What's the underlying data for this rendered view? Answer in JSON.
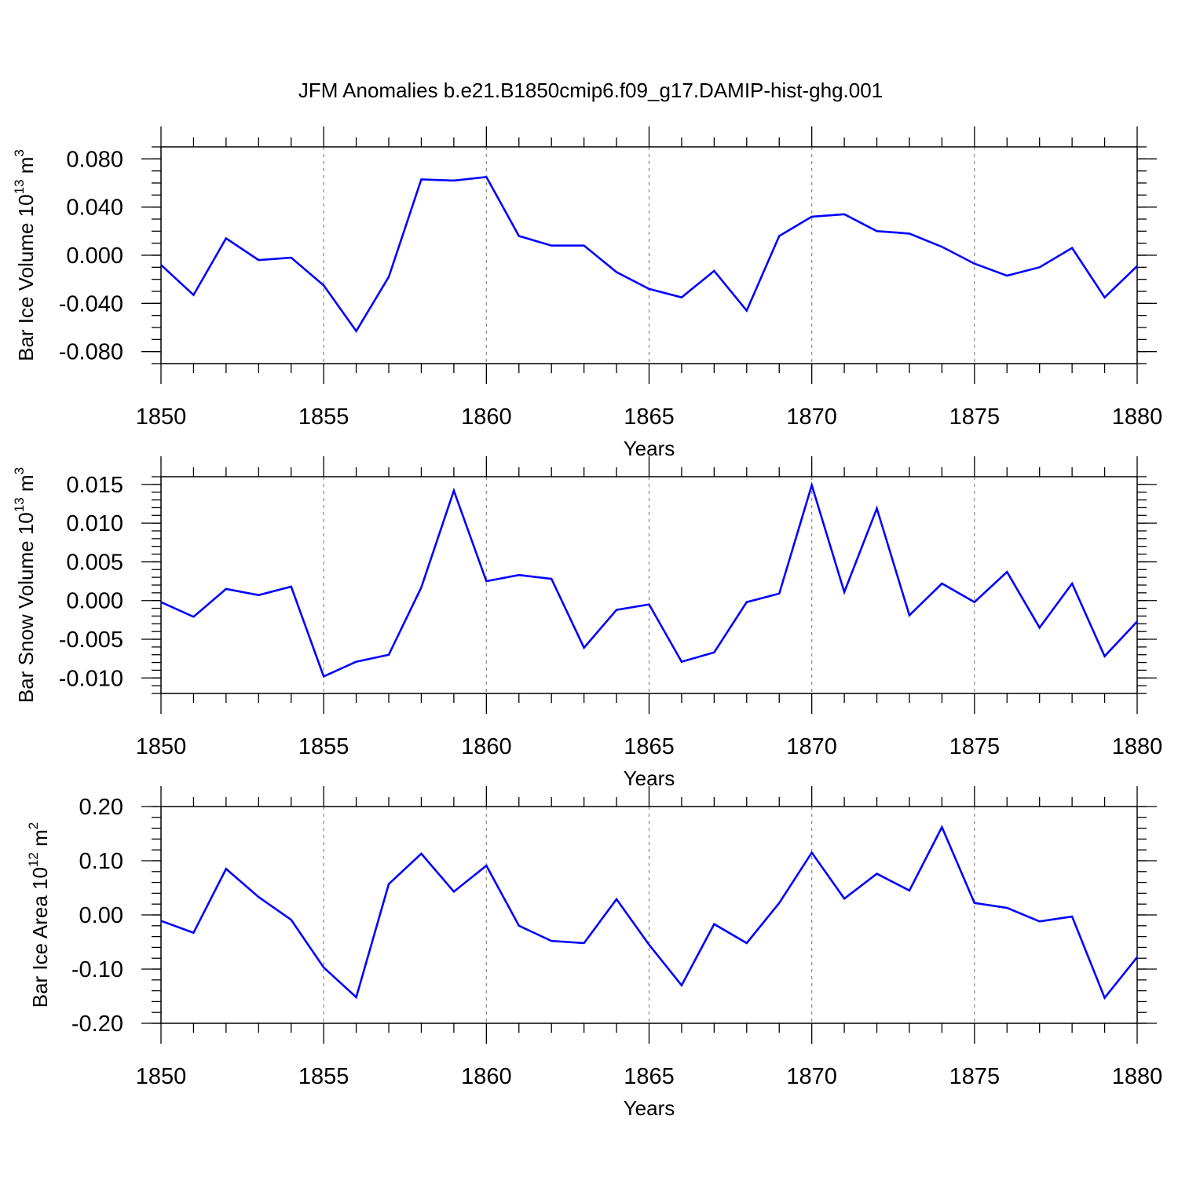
{
  "figure": {
    "title": "JFM Anomalies b.e21.B1850cmip6.f09_g17.DAMIP-hist-ghg.001",
    "line_color": "#0000ff"
  },
  "chart_data": [
    {
      "type": "line",
      "title": "JFM Anomalies b.e21.B1850cmip6.f09_g17.DAMIP-hist-ghg.001",
      "xlabel": "Years",
      "ylabel": "Bar Ice Volume 10",
      "ylabel_exp": "13",
      "ylabel_unit": " m",
      "ylabel_unit_exp": "3",
      "xlim": [
        1850,
        1880
      ],
      "ylim": [
        -0.09,
        0.09
      ],
      "xticks": [
        1850,
        1855,
        1860,
        1865,
        1870,
        1875,
        1880
      ],
      "xtick_labels": [
        "1850",
        "1855",
        "1860",
        "1865",
        "1870",
        "1875",
        "1880"
      ],
      "yticks": [
        -0.08,
        -0.04,
        0.0,
        0.04,
        0.08
      ],
      "ytick_labels": [
        "-0.080",
        "-0.040",
        "0.000",
        "0.040",
        "0.080"
      ],
      "yminor_step": 0.01,
      "grid": "vertical dashed at major x ticks",
      "series": [
        {
          "name": "Bar Ice Volume",
          "x": [
            1850,
            1851,
            1852,
            1853,
            1854,
            1855,
            1856,
            1857,
            1858,
            1859,
            1860,
            1861,
            1862,
            1863,
            1864,
            1865,
            1866,
            1867,
            1868,
            1869,
            1870,
            1871,
            1872,
            1873,
            1874,
            1875,
            1876,
            1877,
            1878,
            1879,
            1880
          ],
          "values": [
            -0.008,
            -0.033,
            0.014,
            -0.004,
            -0.002,
            -0.025,
            -0.063,
            -0.018,
            0.063,
            0.062,
            0.065,
            0.016,
            0.008,
            0.008,
            -0.014,
            -0.028,
            -0.035,
            -0.013,
            -0.046,
            0.016,
            0.032,
            0.034,
            0.02,
            0.018,
            0.007,
            -0.007,
            -0.017,
            -0.01,
            0.006,
            -0.035,
            -0.009
          ]
        }
      ]
    },
    {
      "type": "line",
      "xlabel": "Years",
      "ylabel": "Bar Snow Volume 10",
      "ylabel_exp": "13",
      "ylabel_unit": " m",
      "ylabel_unit_exp": "3",
      "xlim": [
        1850,
        1880
      ],
      "ylim": [
        -0.012,
        0.016
      ],
      "xticks": [
        1850,
        1855,
        1860,
        1865,
        1870,
        1875,
        1880
      ],
      "xtick_labels": [
        "1850",
        "1855",
        "1860",
        "1865",
        "1870",
        "1875",
        "1880"
      ],
      "yticks": [
        -0.01,
        -0.005,
        0.0,
        0.005,
        0.01,
        0.015
      ],
      "ytick_labels": [
        "-0.010",
        "-0.005",
        "0.000",
        "0.005",
        "0.010",
        "0.015"
      ],
      "yminor_step": 0.001,
      "grid": "vertical dashed at major x ticks",
      "series": [
        {
          "name": "Bar Snow Volume",
          "x": [
            1850,
            1851,
            1852,
            1853,
            1854,
            1855,
            1856,
            1857,
            1858,
            1859,
            1860,
            1861,
            1862,
            1863,
            1864,
            1865,
            1866,
            1867,
            1868,
            1869,
            1870,
            1871,
            1872,
            1873,
            1874,
            1875,
            1876,
            1877,
            1878,
            1879,
            1880
          ],
          "values": [
            -0.0002,
            -0.0021,
            0.0015,
            0.0007,
            0.0018,
            -0.0098,
            -0.0079,
            -0.007,
            0.0017,
            0.0142,
            0.0025,
            0.0033,
            0.0028,
            -0.0061,
            -0.0012,
            -0.0005,
            -0.0079,
            -0.0067,
            -0.0002,
            0.0009,
            0.0149,
            0.0011,
            0.0119,
            -0.0019,
            0.0022,
            -0.0002,
            0.0037,
            -0.0035,
            0.0022,
            -0.0072,
            -0.0027
          ]
        }
      ]
    },
    {
      "type": "line",
      "xlabel": "Years",
      "ylabel": "Bar Ice Area 10",
      "ylabel_exp": "12",
      "ylabel_unit": " m",
      "ylabel_unit_exp": "2",
      "xlim": [
        1850,
        1880
      ],
      "ylim": [
        -0.2,
        0.2
      ],
      "xticks": [
        1850,
        1855,
        1860,
        1865,
        1870,
        1875,
        1880
      ],
      "xtick_labels": [
        "1850",
        "1855",
        "1860",
        "1865",
        "1870",
        "1875",
        "1880"
      ],
      "yticks": [
        -0.2,
        -0.1,
        0.0,
        0.1,
        0.2
      ],
      "ytick_labels": [
        "-0.20",
        "-0.10",
        "0.00",
        "0.10",
        "0.20"
      ],
      "yminor_step": 0.02,
      "grid": "vertical dashed at major x ticks",
      "series": [
        {
          "name": "Bar Ice Area",
          "x": [
            1850,
            1851,
            1852,
            1853,
            1854,
            1855,
            1856,
            1857,
            1858,
            1859,
            1860,
            1861,
            1862,
            1863,
            1864,
            1865,
            1866,
            1867,
            1868,
            1869,
            1870,
            1871,
            1872,
            1873,
            1874,
            1875,
            1876,
            1877,
            1878,
            1879,
            1880
          ],
          "values": [
            -0.011,
            -0.033,
            0.085,
            0.033,
            -0.009,
            -0.097,
            -0.152,
            0.057,
            0.113,
            0.043,
            0.091,
            -0.02,
            -0.048,
            -0.052,
            0.029,
            -0.055,
            -0.13,
            -0.017,
            -0.052,
            0.022,
            0.115,
            0.03,
            0.076,
            0.045,
            0.162,
            0.022,
            0.013,
            -0.012,
            -0.003,
            -0.153,
            -0.078
          ]
        }
      ]
    }
  ]
}
